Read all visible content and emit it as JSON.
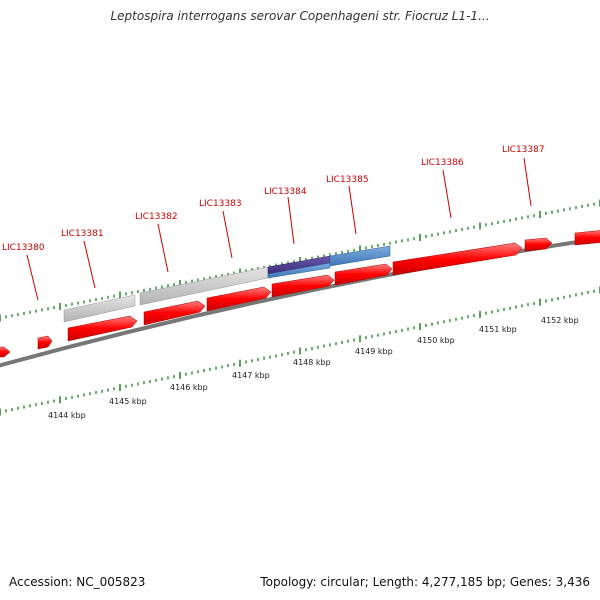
{
  "title": "Leptospira interrogans serovar Copenhageni str. Fiocruz L1-1...",
  "footer": {
    "accession": "Accession: NC_005823",
    "topology": "Topology: circular; Length: 4,277,185 bp; Genes: 3,436"
  },
  "genes": [
    {
      "label": "LIC13380"
    },
    {
      "label": "LIC13381"
    },
    {
      "label": "LIC13382"
    },
    {
      "label": "LIC13383"
    },
    {
      "label": "LIC13384"
    },
    {
      "label": "LIC13385"
    },
    {
      "label": "LIC13386"
    },
    {
      "label": "LIC13387"
    }
  ],
  "ruler": [
    "4144 kbp",
    "4145 kbp",
    "4146 kbp",
    "4147 kbp",
    "4148 kbp",
    "4149 kbp",
    "4150 kbp",
    "4151 kbp",
    "4152 kbp"
  ],
  "colors": {
    "gene_arrow": "#ff0000",
    "gene_label": "#cc0000",
    "backbone": "#777777",
    "tick": "#2a8a2a",
    "feature_gray": "#c0c0c0",
    "feature_blue": "#4f86c6",
    "feature_purple": "#4b3a8f"
  }
}
